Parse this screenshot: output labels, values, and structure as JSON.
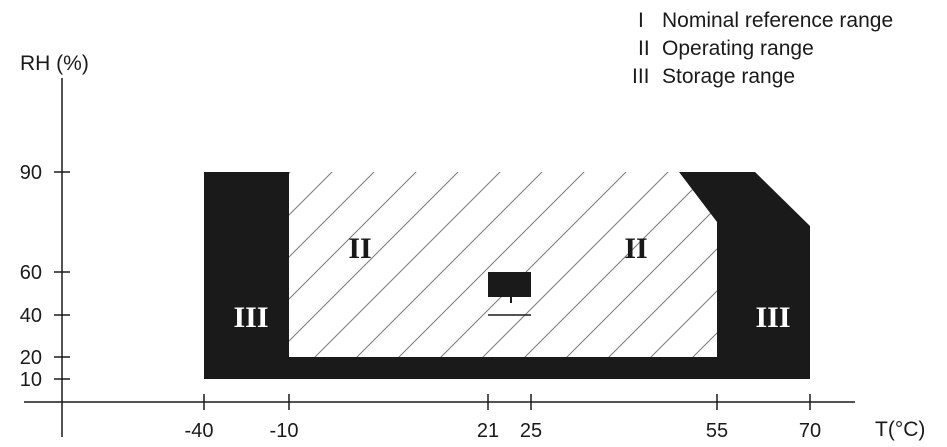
{
  "legend": [
    {
      "numeral": "I",
      "text": "Nominal reference range"
    },
    {
      "numeral": "II",
      "text": "Operating range"
    },
    {
      "numeral": "III",
      "text": "Storage range"
    }
  ],
  "axes": {
    "y_title": "RH (%)",
    "x_title": "T(°C)",
    "y_ticks": [
      "90",
      "60",
      "40",
      "20",
      "10"
    ],
    "x_ticks": [
      "-40",
      "-10",
      "21",
      "25",
      "55",
      "70"
    ]
  },
  "region_labels": {
    "operating_left": "II",
    "operating_right": "II",
    "storage_left": "III",
    "storage_right": "III"
  },
  "chart_data": {
    "type": "area",
    "xlabel": "T(°C)",
    "ylabel": "RH (%)",
    "x_ticks": [
      -40,
      -10,
      21,
      25,
      55,
      70
    ],
    "y_ticks": [
      10,
      20,
      40,
      60,
      90
    ],
    "ranges": [
      {
        "name": "Nominal reference range",
        "temperature": [
          21,
          25
        ],
        "rh": [
          40,
          60
        ]
      },
      {
        "name": "Operating range",
        "temperature": [
          -10,
          55
        ],
        "rh": [
          20,
          90
        ]
      },
      {
        "name": "Storage range",
        "temperature": [
          -40,
          70
        ],
        "rh": [
          10,
          90
        ]
      }
    ],
    "colors": {
      "fill": "#1a1a1a",
      "hatch": "#7a7a7a",
      "background": "#ffffff"
    }
  }
}
